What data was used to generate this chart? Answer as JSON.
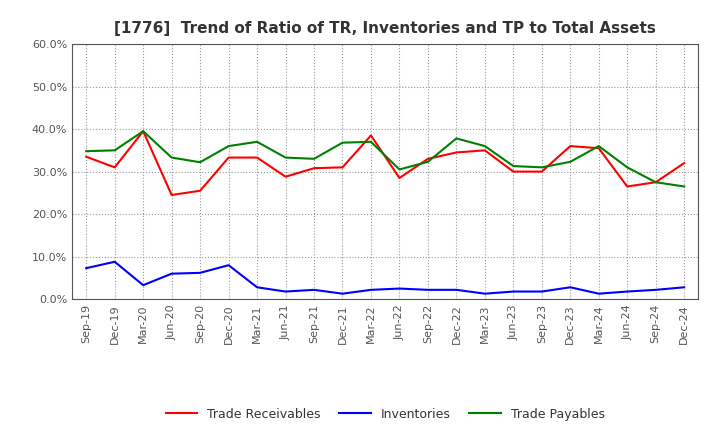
{
  "title": "[1776]  Trend of Ratio of TR, Inventories and TP to Total Assets",
  "x_labels": [
    "Sep-19",
    "Dec-19",
    "Mar-20",
    "Jun-20",
    "Sep-20",
    "Dec-20",
    "Mar-21",
    "Jun-21",
    "Sep-21",
    "Dec-21",
    "Mar-22",
    "Jun-22",
    "Sep-22",
    "Dec-22",
    "Mar-23",
    "Jun-23",
    "Sep-23",
    "Dec-23",
    "Mar-24",
    "Jun-24",
    "Sep-24",
    "Dec-24"
  ],
  "trade_receivables": [
    0.335,
    0.31,
    0.395,
    0.245,
    0.255,
    0.333,
    0.333,
    0.288,
    0.308,
    0.31,
    0.385,
    0.285,
    0.33,
    0.345,
    0.35,
    0.3,
    0.3,
    0.36,
    0.355,
    0.265,
    0.275,
    0.32
  ],
  "inventories": [
    0.073,
    0.088,
    0.033,
    0.06,
    0.062,
    0.08,
    0.028,
    0.018,
    0.022,
    0.013,
    0.022,
    0.025,
    0.022,
    0.022,
    0.013,
    0.018,
    0.018,
    0.028,
    0.013,
    0.018,
    0.022,
    0.028
  ],
  "trade_payables": [
    0.348,
    0.35,
    0.395,
    0.333,
    0.322,
    0.36,
    0.37,
    0.333,
    0.33,
    0.368,
    0.37,
    0.305,
    0.323,
    0.378,
    0.36,
    0.313,
    0.31,
    0.323,
    0.36,
    0.31,
    0.275,
    0.265
  ],
  "tr_color": "#FF0000",
  "inv_color": "#0000FF",
  "tp_color": "#008000",
  "ylim": [
    0.0,
    0.6
  ],
  "yticks": [
    0.0,
    0.1,
    0.2,
    0.3,
    0.4,
    0.5,
    0.6
  ],
  "legend_labels": [
    "Trade Receivables",
    "Inventories",
    "Trade Payables"
  ],
  "background_color": "#FFFFFF",
  "grid_color": "#999999",
  "spine_color": "#555555",
  "tick_color": "#555555",
  "title_color": "#333333",
  "title_fontsize": 11,
  "tick_fontsize": 8,
  "legend_fontsize": 9
}
